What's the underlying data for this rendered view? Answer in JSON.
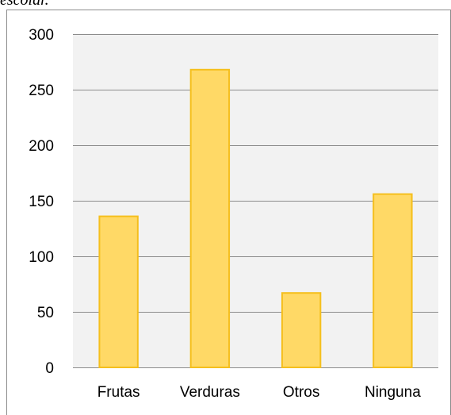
{
  "caption": "escolar.",
  "chart_data": {
    "type": "bar",
    "categories": [
      "Frutas",
      "Verduras",
      "Otros",
      "Ninguna"
    ],
    "values": [
      136,
      268,
      67,
      156
    ],
    "color": "#ffd966",
    "edge_color": "#f5bf1d",
    "ylim": [
      0,
      300
    ],
    "yticks": [
      0,
      50,
      100,
      150,
      200,
      250,
      300
    ],
    "grid": true
  }
}
